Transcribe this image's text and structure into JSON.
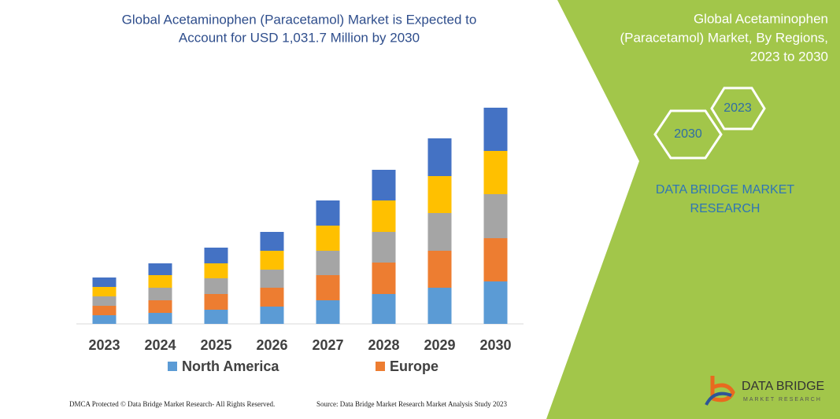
{
  "chart_data": {
    "type": "bar",
    "stacked": true,
    "title": [
      "Global Acetaminophen (Paracetamol) Market is Expected to",
      "Account for USD 1,031.7 Million by 2030"
    ],
    "categories": [
      "2023",
      "2024",
      "2025",
      "2026",
      "2027",
      "2028",
      "2029",
      "2030"
    ],
    "series": [
      {
        "name": "North America",
        "color": "#5b9bd5",
        "values": [
          11,
          14,
          18,
          22,
          30,
          38,
          46,
          54
        ]
      },
      {
        "name": "Europe",
        "color": "#ed7d31",
        "values": [
          12,
          16,
          20,
          24,
          32,
          40,
          47,
          55
        ]
      },
      {
        "color": "#a5a5a5",
        "values": [
          12,
          16,
          20,
          23,
          31,
          39,
          48,
          56
        ]
      },
      {
        "color": "#ffc000",
        "values": [
          12,
          16,
          19,
          24,
          32,
          40,
          47,
          55
        ]
      },
      {
        "color": "#4472c4",
        "values": [
          12,
          15,
          20,
          24,
          32,
          39,
          48,
          55
        ]
      }
    ],
    "ylim": [
      0,
      300
    ]
  },
  "panel": {
    "title": [
      "Global Acetaminophen",
      "(Paracetamol) Market, By Regions,",
      "2023 to 2030"
    ],
    "hex_labels": [
      "2023",
      "2030"
    ],
    "brand": [
      "DATA BRIDGE MARKET",
      "RESEARCH"
    ]
  },
  "logo": {
    "name": "DATA BRIDGE",
    "tagline": "MARKET RESEARCH"
  },
  "footer": {
    "left": "DMCA Protected © Data Bridge Market Research-  All Rights Reserved.",
    "right": "Source: Data Bridge Market Research  Market Analysis Study 2023"
  }
}
